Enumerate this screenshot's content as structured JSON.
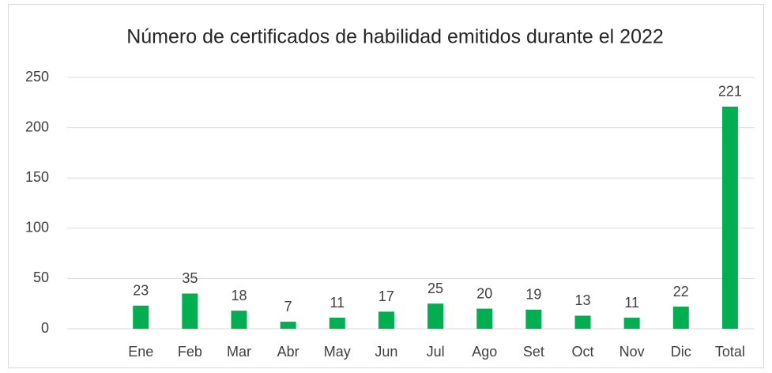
{
  "chart_data": {
    "type": "bar",
    "title": "Número de certificados de habilidad emitidos durante el 2022",
    "categories": [
      null,
      "Ene",
      "Feb",
      "Mar",
      "Abr",
      "May",
      "Jun",
      "Jul",
      "Ago",
      "Set",
      "Oct",
      "Nov",
      "Dic",
      "Total"
    ],
    "values": [
      null,
      23,
      35,
      18,
      7,
      11,
      17,
      25,
      20,
      19,
      13,
      11,
      22,
      221
    ],
    "color": "#00b050",
    "ylim": [
      0,
      250
    ],
    "yticks": [
      0,
      50,
      100,
      150,
      200,
      250
    ],
    "grid": true
  }
}
